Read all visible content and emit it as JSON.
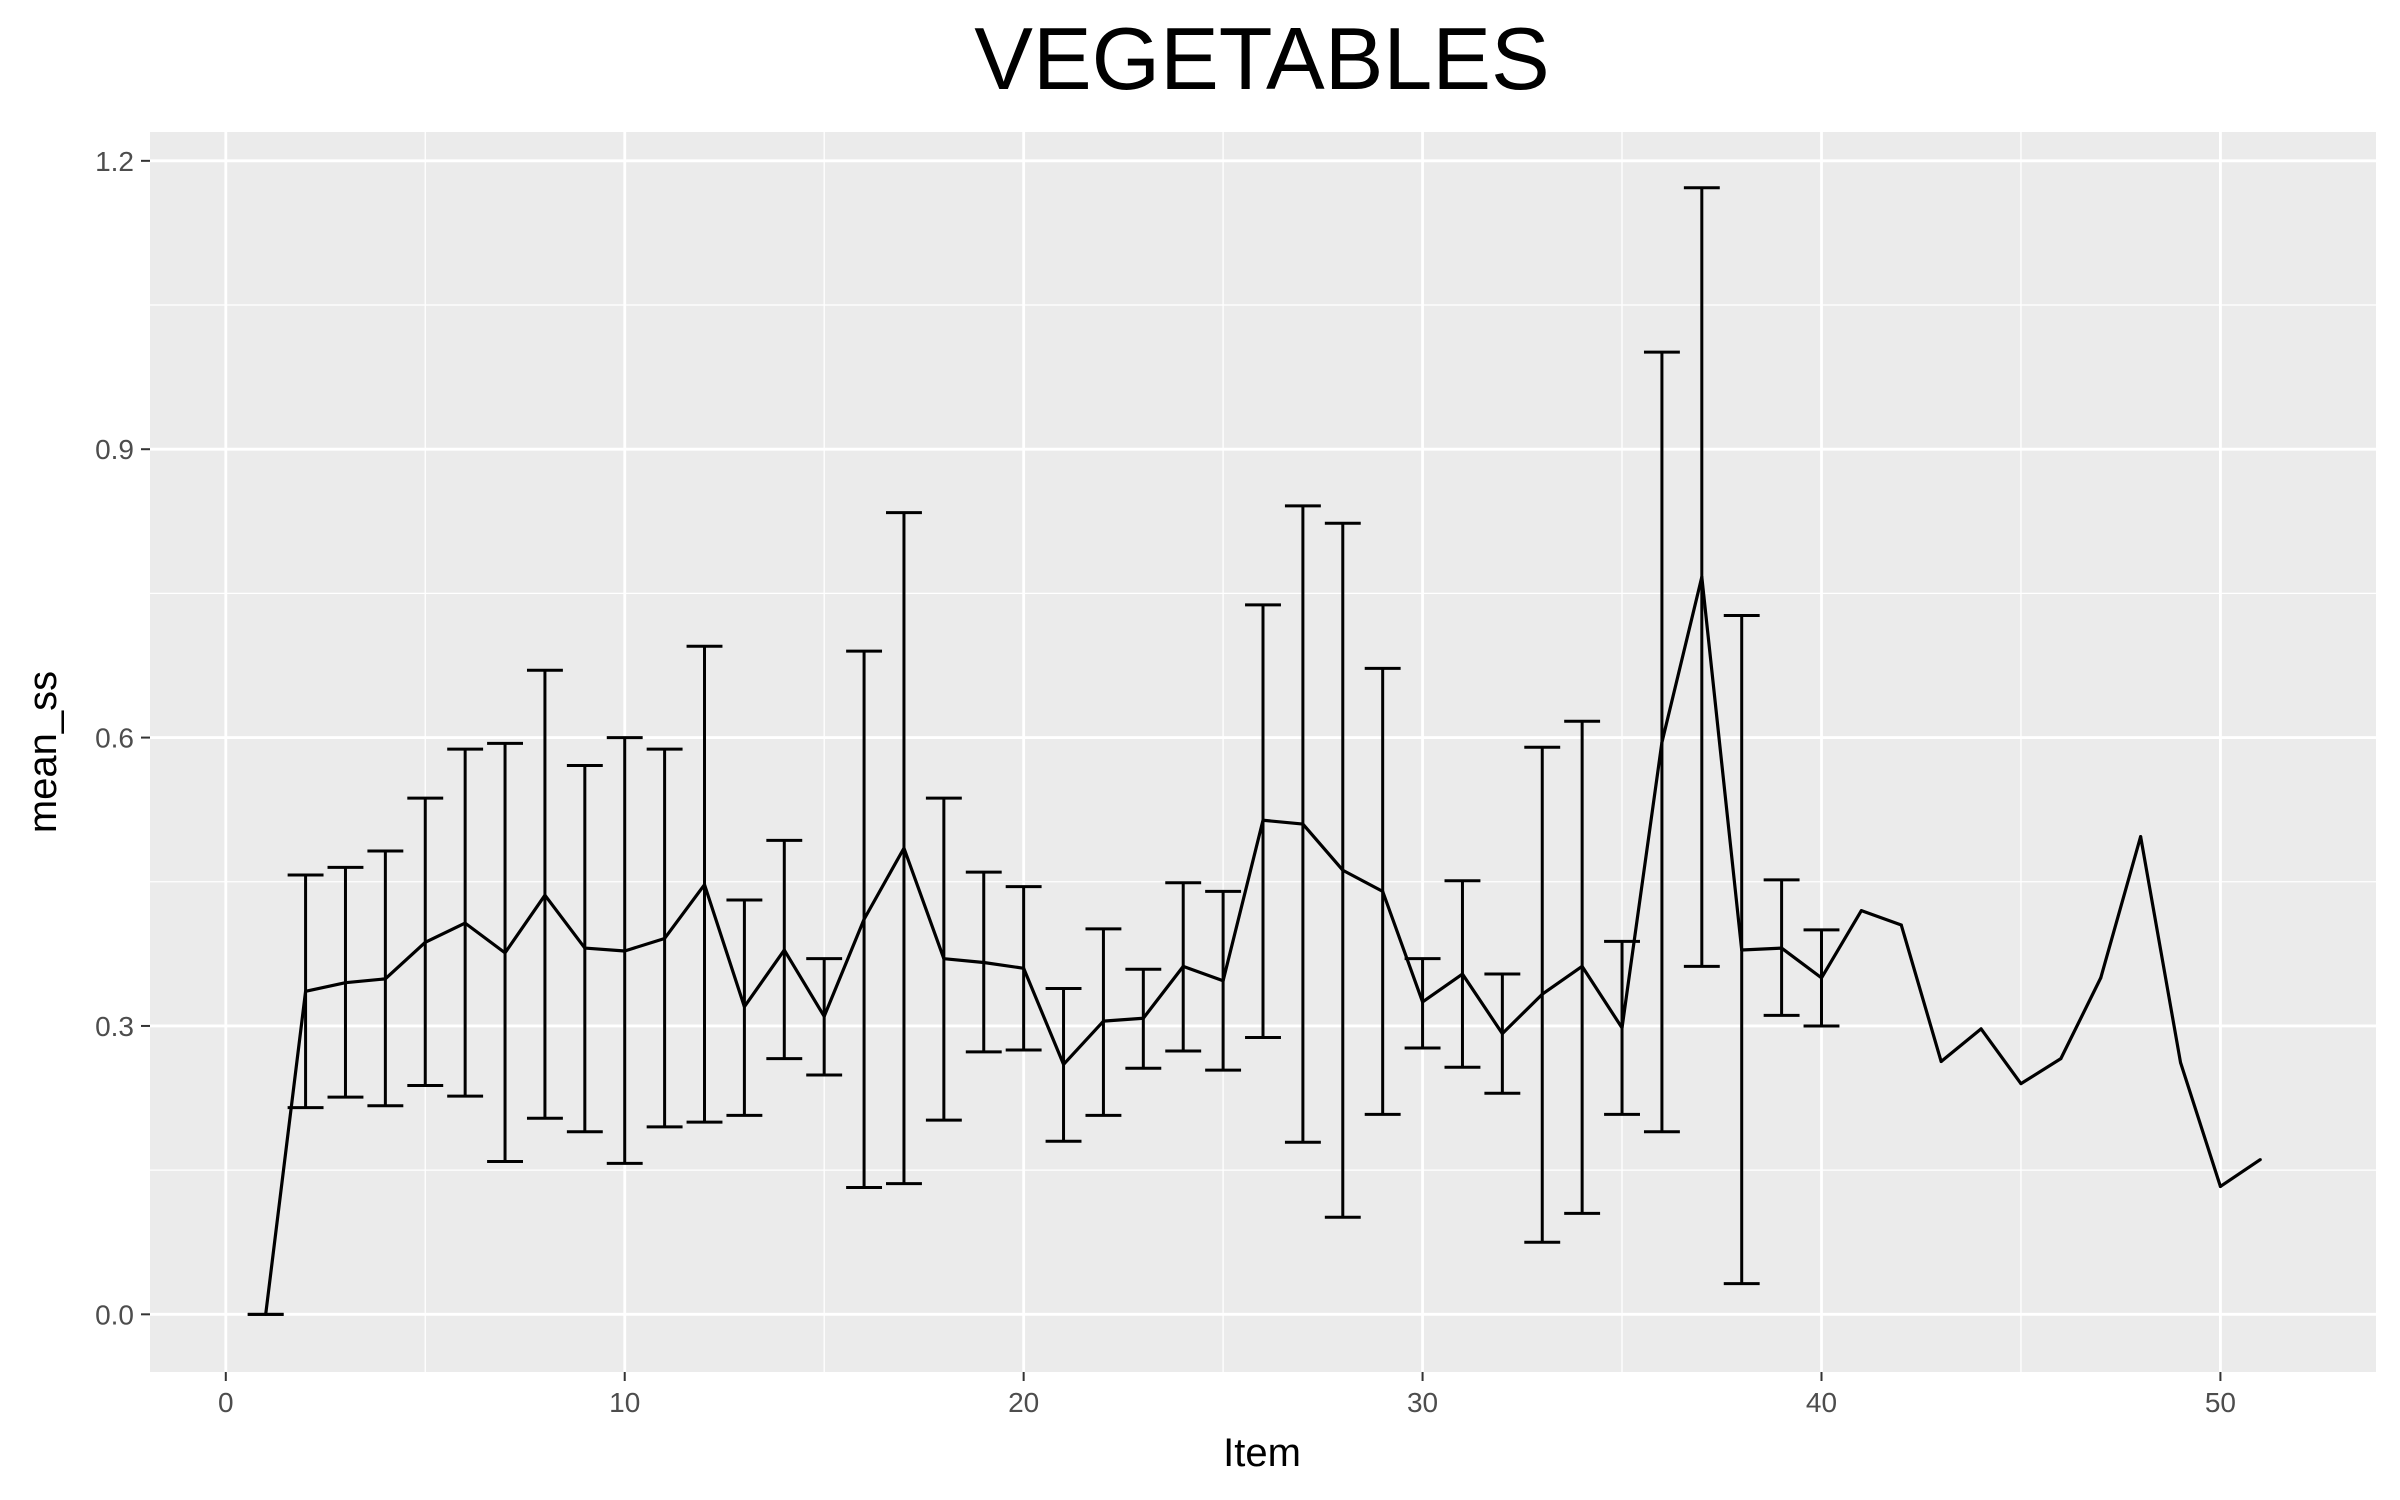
{
  "chart_data": {
    "type": "line",
    "title": "VEGETABLES",
    "xlabel": "Item",
    "ylabel": "mean_ss",
    "xlim": [
      -1.9,
      53.9
    ],
    "ylim": [
      -0.06,
      1.23
    ],
    "x_ticks": [
      0,
      10,
      20,
      30,
      40,
      50
    ],
    "x_tick_labels": [
      "0",
      "10",
      "20",
      "30",
      "40",
      "50"
    ],
    "y_ticks": [
      0.0,
      0.3,
      0.6,
      0.9,
      1.2
    ],
    "y_tick_labels": [
      "0.0",
      "0.3",
      "0.6",
      "0.9",
      "1.2"
    ],
    "grid": true,
    "legend": "none",
    "colors": {
      "panel": "#ebebeb",
      "grid": "#ffffff",
      "line": "#000000",
      "tick_label": "#4d4d4d"
    },
    "series": [
      {
        "x": [
          1,
          2,
          3,
          4,
          5,
          6,
          7,
          8,
          9,
          10,
          11,
          12,
          13,
          14,
          15,
          16,
          17,
          18,
          19,
          20,
          21,
          22,
          23,
          24,
          25,
          26,
          27,
          28,
          29,
          30,
          31,
          32,
          33,
          34,
          35,
          36,
          37,
          38,
          39,
          40,
          41,
          42,
          43,
          44,
          45,
          46,
          47,
          48,
          49,
          50,
          51
        ],
        "y": [
          0.0,
          0.336,
          0.345,
          0.349,
          0.387,
          0.407,
          0.376,
          0.436,
          0.381,
          0.378,
          0.391,
          0.447,
          0.32,
          0.379,
          0.31,
          0.411,
          0.485,
          0.37,
          0.366,
          0.36,
          0.26,
          0.305,
          0.308,
          0.362,
          0.347,
          0.514,
          0.51,
          0.462,
          0.44,
          0.325,
          0.354,
          0.292,
          0.333,
          0.362,
          0.298,
          0.595,
          0.767,
          0.379,
          0.381,
          0.35,
          0.42,
          0.405,
          0.263,
          0.297,
          0.24,
          0.266,
          0.35,
          0.497,
          0.262,
          0.133,
          0.161
        ],
        "error_low": [
          0.0,
          0.215,
          0.226,
          0.217,
          0.238,
          0.227,
          0.159,
          0.204,
          0.19,
          0.157,
          0.195,
          0.2,
          0.207,
          0.266,
          0.249,
          0.132,
          0.136,
          0.202,
          0.273,
          0.275,
          0.18,
          0.207,
          0.256,
          0.274,
          0.254,
          0.288,
          0.179,
          0.101,
          0.208,
          0.277,
          0.257,
          0.23,
          0.075,
          0.105,
          0.208,
          0.19,
          0.362,
          0.032,
          0.311,
          0.3,
          null,
          null,
          null,
          null,
          null,
          null,
          null,
          null,
          null,
          null,
          null
        ],
        "error_high": [
          0.0,
          0.457,
          0.465,
          0.482,
          0.537,
          0.588,
          0.594,
          0.67,
          0.571,
          0.6,
          0.588,
          0.695,
          0.431,
          0.493,
          0.37,
          0.69,
          0.834,
          0.537,
          0.46,
          0.445,
          0.339,
          0.401,
          0.359,
          0.449,
          0.44,
          0.738,
          0.841,
          0.823,
          0.672,
          0.37,
          0.451,
          0.354,
          0.59,
          0.617,
          0.388,
          1.001,
          1.172,
          0.727,
          0.452,
          0.4,
          null,
          null,
          null,
          null,
          null,
          null,
          null,
          null,
          null,
          null,
          null
        ]
      }
    ]
  }
}
